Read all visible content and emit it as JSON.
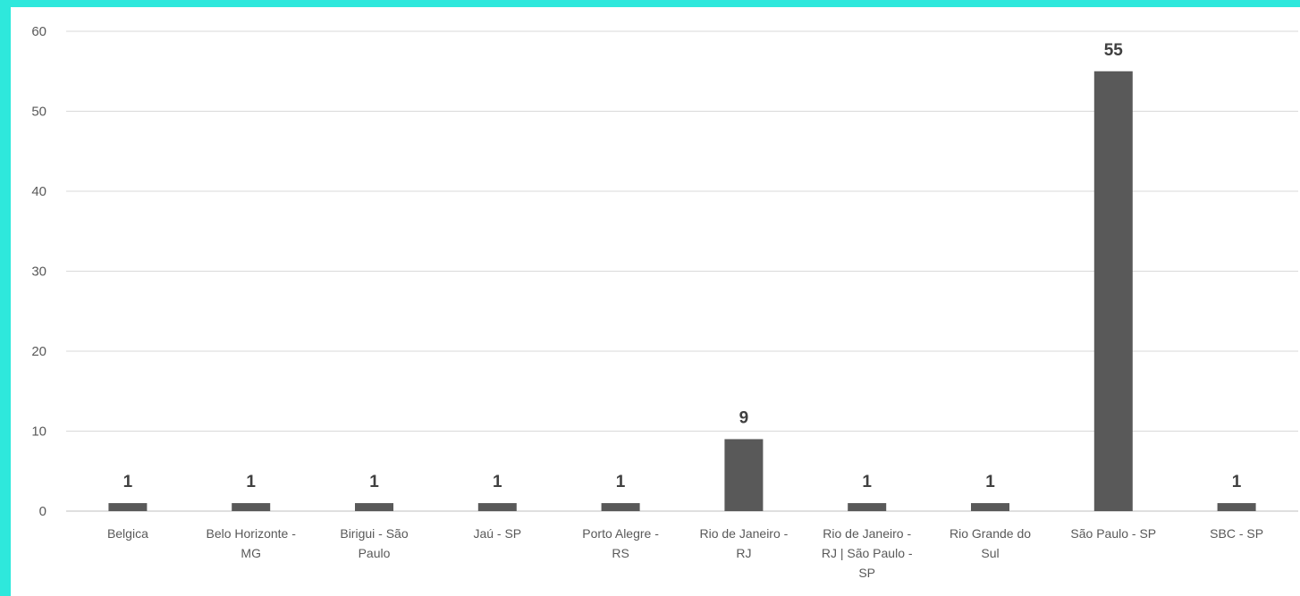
{
  "chart_data": {
    "type": "bar",
    "title": "",
    "xlabel": "",
    "ylabel": "",
    "ylim": [
      0,
      60
    ],
    "yticks": [
      0,
      10,
      20,
      30,
      40,
      50,
      60
    ],
    "grid": true,
    "legend": "none",
    "bar_color": "#595959",
    "categories": [
      [
        "Belgica"
      ],
      [
        "Belo Horizonte -",
        "MG"
      ],
      [
        "Birigui - São",
        "Paulo"
      ],
      [
        "Jaú - SP"
      ],
      [
        "Porto Alegre -",
        "RS"
      ],
      [
        "Rio de Janeiro -",
        "RJ"
      ],
      [
        "Rio de Janeiro -",
        "RJ | São Paulo -",
        "SP"
      ],
      [
        "Rio Grande do",
        "Sul"
      ],
      [
        "São Paulo - SP"
      ],
      [
        "SBC - SP"
      ]
    ],
    "values": [
      1,
      1,
      1,
      1,
      1,
      9,
      1,
      1,
      55,
      1
    ]
  }
}
